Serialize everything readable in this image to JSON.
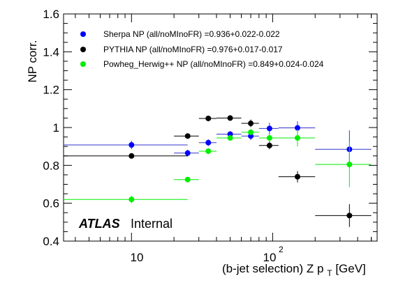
{
  "chart_data": {
    "type": "scatter",
    "xlabel": "(b-jet selection) Z p",
    "xlabel_subscript": "T",
    "xlabel_unit": " [GeV]",
    "ylabel": "NP corr.",
    "xscale": "log",
    "xlim": [
      3.3,
      550
    ],
    "ylim": [
      0.4,
      1.6
    ],
    "x_tick_labels": [
      "10",
      "10",
      "2"
    ],
    "y_ticks": [
      0.4,
      0.6,
      0.8,
      1.0,
      1.2,
      1.4,
      1.6
    ],
    "y_tick_labels": [
      "0.4",
      "0.6",
      "0.8",
      "1",
      "1.2",
      "1.4",
      "1.6"
    ],
    "annotation": {
      "bold": "ATLAS",
      "normal": "Internal"
    },
    "legend_position": "top-left",
    "series": [
      {
        "name": "Sherpa NP (all/noMInoFR) =0.936+0.022-0.022",
        "color": "#0000ff",
        "line_color": "#3333cc",
        "points": [
          {
            "x": 10.0,
            "xlo": 3.3,
            "xhi": 25.0,
            "y": 0.908,
            "yerr": 0.022
          },
          {
            "x": 25.0,
            "xlo": 20.0,
            "xhi": 30.0,
            "y": 0.865,
            "yerr": 0.018
          },
          {
            "x": 35.0,
            "xlo": 30.0,
            "xhi": 40.0,
            "y": 0.92,
            "yerr": 0.018
          },
          {
            "x": 50.0,
            "xlo": 40.0,
            "xhi": 60.0,
            "y": 0.965,
            "yerr": 0.015
          },
          {
            "x": 70.0,
            "xlo": 60.0,
            "xhi": 80.0,
            "y": 0.955,
            "yerr": 0.022
          },
          {
            "x": 95.0,
            "xlo": 80.0,
            "xhi": 110.0,
            "y": 0.995,
            "yerr": 0.03
          },
          {
            "x": 150.0,
            "xlo": 110.0,
            "xhi": 200.0,
            "y": 0.998,
            "yerr": 0.035
          },
          {
            "x": 350.0,
            "xlo": 200.0,
            "xhi": 500.0,
            "y": 0.885,
            "yerr": 0.1
          }
        ]
      },
      {
        "name": "PYTHIA NP (all/noMInoFR) =0.976+0.017-0.017",
        "color": "#000000",
        "line_color": "#000000",
        "points": [
          {
            "x": 10.0,
            "xlo": 3.3,
            "xhi": 25.0,
            "y": 0.85,
            "yerr": 0.008
          },
          {
            "x": 25.0,
            "xlo": 20.0,
            "xhi": 30.0,
            "y": 0.955,
            "yerr": 0.008
          },
          {
            "x": 35.0,
            "xlo": 30.0,
            "xhi": 40.0,
            "y": 1.048,
            "yerr": 0.01
          },
          {
            "x": 50.0,
            "xlo": 40.0,
            "xhi": 60.0,
            "y": 1.05,
            "yerr": 0.01
          },
          {
            "x": 70.0,
            "xlo": 60.0,
            "xhi": 80.0,
            "y": 1.022,
            "yerr": 0.02
          },
          {
            "x": 95.0,
            "xlo": 80.0,
            "xhi": 110.0,
            "y": 0.905,
            "yerr": 0.02
          },
          {
            "x": 150.0,
            "xlo": 110.0,
            "xhi": 200.0,
            "y": 0.74,
            "yerr": 0.03
          },
          {
            "x": 350.0,
            "xlo": 200.0,
            "xhi": 500.0,
            "y": 0.535,
            "yerr": 0.06
          }
        ]
      },
      {
        "name": "Powheg_Herwig++ NP (all/noMInoFR) =0.849+0.024-0.024",
        "color": "#00ee00",
        "line_color": "#00ee00",
        "points": [
          {
            "x": 10.0,
            "xlo": 3.3,
            "xhi": 25.0,
            "y": 0.62,
            "yerr": 0.02
          },
          {
            "x": 25.0,
            "xlo": 20.0,
            "xhi": 30.0,
            "y": 0.725,
            "yerr": 0.015
          },
          {
            "x": 35.0,
            "xlo": 30.0,
            "xhi": 40.0,
            "y": 0.875,
            "yerr": 0.015
          },
          {
            "x": 50.0,
            "xlo": 40.0,
            "xhi": 60.0,
            "y": 0.945,
            "yerr": 0.015
          },
          {
            "x": 70.0,
            "xlo": 60.0,
            "xhi": 80.0,
            "y": 0.975,
            "yerr": 0.015
          },
          {
            "x": 95.0,
            "xlo": 80.0,
            "xhi": 110.0,
            "y": 0.945,
            "yerr": 0.02
          },
          {
            "x": 150.0,
            "xlo": 110.0,
            "xhi": 200.0,
            "y": 0.945,
            "yerr": 0.045
          },
          {
            "x": 350.0,
            "xlo": 200.0,
            "xhi": 500.0,
            "y": 0.805,
            "yerr": 0.12
          }
        ]
      }
    ]
  }
}
